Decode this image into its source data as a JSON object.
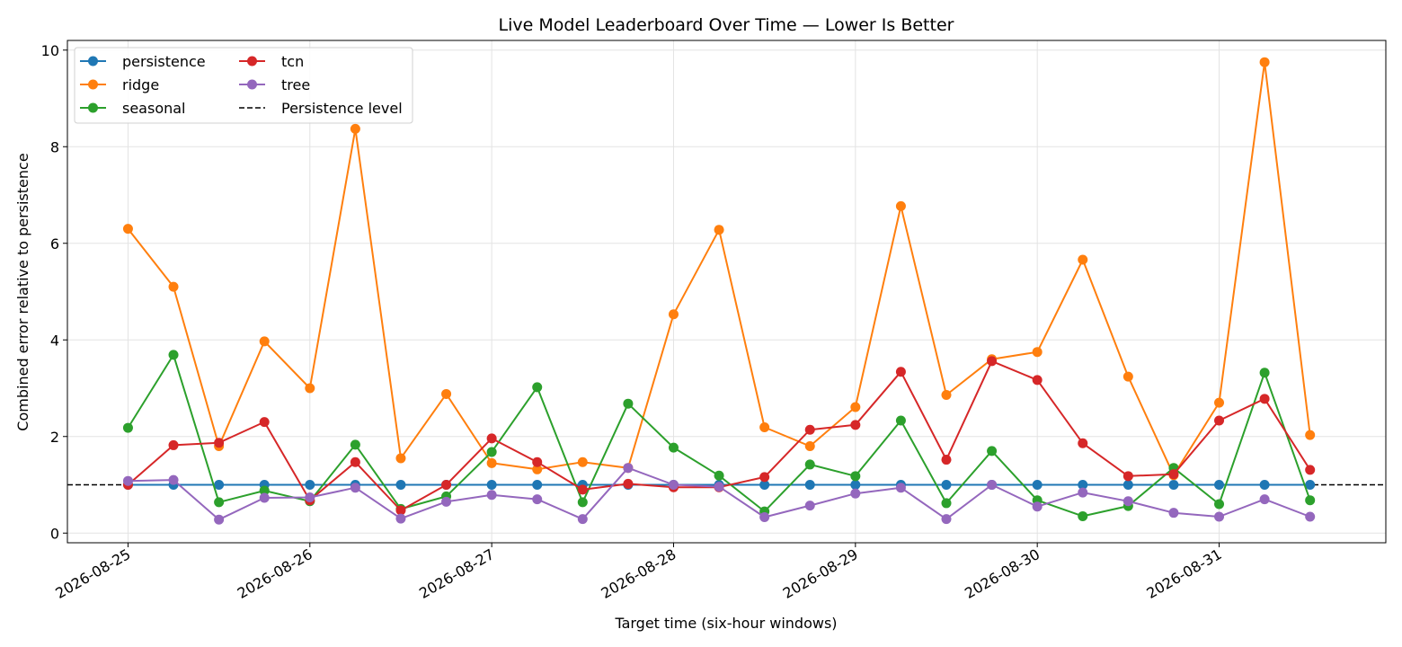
{
  "chart_data": {
    "type": "line",
    "title": "Live Model Leaderboard Over Time — Lower Is Better",
    "xlabel": "Target time (six-hour windows)",
    "ylabel": "Combined error relative to persistence",
    "x_type": "datetime",
    "x_range": [
      "2026-08-24 16:00",
      "2026-08-31 22:00"
    ],
    "ylim": [
      -0.2,
      10.2
    ],
    "x_ticks": [
      "2026-08-25",
      "2026-08-26",
      "2026-08-27",
      "2026-08-28",
      "2026-08-29",
      "2026-08-30",
      "2026-08-31"
    ],
    "y_ticks": [
      0,
      2,
      4,
      6,
      8,
      10
    ],
    "grid": true,
    "legend_position": "top-left",
    "x": [
      "2026-08-25 00:00",
      "2026-08-25 06:00",
      "2026-08-25 12:00",
      "2026-08-25 18:00",
      "2026-08-26 00:00",
      "2026-08-26 06:00",
      "2026-08-26 12:00",
      "2026-08-26 18:00",
      "2026-08-27 00:00",
      "2026-08-27 06:00",
      "2026-08-27 12:00",
      "2026-08-27 18:00",
      "2026-08-28 00:00",
      "2026-08-28 06:00",
      "2026-08-28 12:00",
      "2026-08-28 18:00",
      "2026-08-29 00:00",
      "2026-08-29 06:00",
      "2026-08-29 12:00",
      "2026-08-29 18:00",
      "2026-08-30 00:00",
      "2026-08-30 06:00",
      "2026-08-30 12:00",
      "2026-08-30 18:00",
      "2026-08-31 00:00",
      "2026-08-31 06:00",
      "2026-08-31 12:00"
    ],
    "series": [
      {
        "name": "persistence",
        "color": "#1f77b4",
        "values": [
          1,
          1,
          1,
          1,
          1,
          1,
          1,
          1,
          1,
          1,
          1,
          1,
          1,
          1,
          1,
          1,
          1,
          1,
          1,
          1,
          1,
          1,
          1,
          1,
          1,
          1,
          1
        ]
      },
      {
        "name": "ridge",
        "color": "#ff7f0e",
        "values": [
          6.3,
          5.1,
          1.8,
          3.97,
          3.0,
          8.37,
          1.55,
          2.88,
          1.45,
          1.32,
          1.47,
          1.35,
          4.53,
          6.28,
          2.19,
          1.8,
          2.61,
          6.77,
          2.86,
          3.6,
          3.75,
          5.66,
          3.24,
          1.2,
          2.7,
          9.75,
          2.03
        ]
      },
      {
        "name": "seasonal",
        "color": "#2ca02c",
        "values": [
          2.18,
          3.69,
          0.64,
          0.88,
          0.66,
          1.83,
          0.5,
          0.76,
          1.68,
          3.02,
          0.64,
          2.68,
          1.77,
          1.19,
          0.45,
          1.42,
          1.18,
          2.33,
          0.62,
          1.7,
          0.68,
          0.35,
          0.56,
          1.35,
          0.6,
          3.32,
          0.68
        ]
      },
      {
        "name": "tcn",
        "color": "#d62728",
        "values": [
          1.0,
          1.82,
          1.87,
          2.3,
          0.68,
          1.47,
          0.47,
          1.0,
          1.96,
          1.47,
          0.9,
          1.02,
          0.95,
          0.95,
          1.16,
          2.14,
          2.24,
          3.34,
          1.52,
          3.56,
          3.17,
          1.86,
          1.18,
          1.22,
          2.33,
          2.78,
          1.31
        ]
      },
      {
        "name": "tree",
        "color": "#9467bd",
        "values": [
          1.08,
          1.1,
          0.28,
          0.73,
          0.74,
          0.94,
          0.3,
          0.65,
          0.79,
          0.7,
          0.29,
          1.35,
          1.0,
          0.96,
          0.33,
          0.57,
          0.82,
          0.94,
          0.29,
          1.0,
          0.55,
          0.84,
          0.66,
          0.42,
          0.34,
          0.7,
          0.34
        ]
      }
    ],
    "reference_lines": [
      {
        "name": "Persistence level",
        "y": 1,
        "color": "#000000",
        "style": "dashed"
      }
    ]
  }
}
